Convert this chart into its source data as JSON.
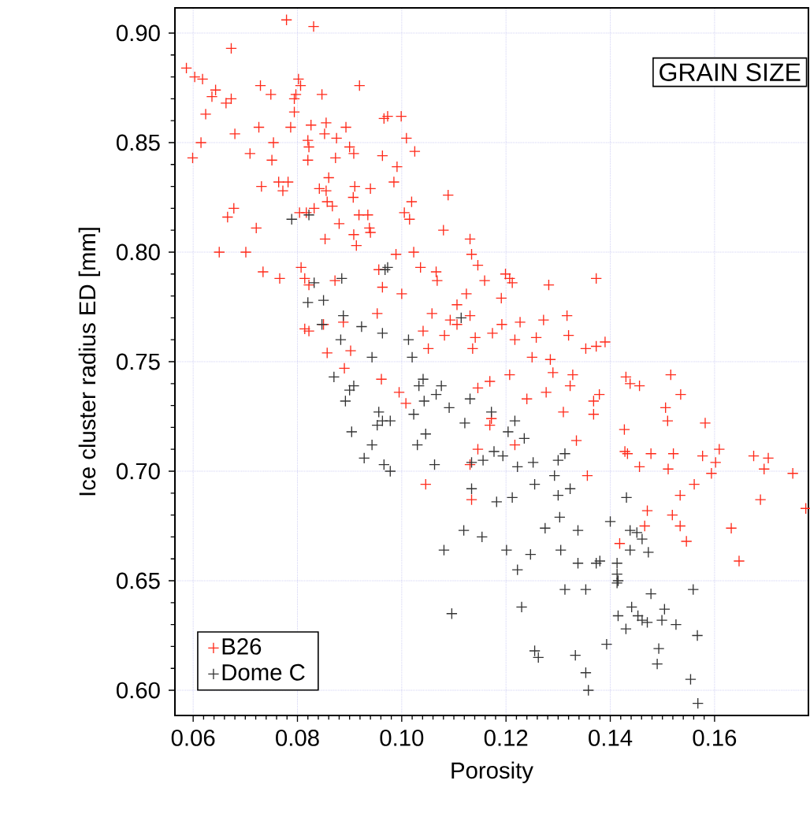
{
  "chart_data": {
    "type": "scatter",
    "xlabel": "Porosity",
    "ylabel": "Ice cluster radius ED [mm]",
    "annotations": [
      "GRAIN SIZE"
    ],
    "xlim": [
      0.0565,
      0.178
    ],
    "ylim": [
      0.5885,
      0.9115
    ],
    "xticks": [
      {
        "value": 0.06,
        "label": "0.06"
      },
      {
        "value": 0.08,
        "label": "0.08"
      },
      {
        "value": 0.1,
        "label": "0.10"
      },
      {
        "value": 0.12,
        "label": "0.12"
      },
      {
        "value": 0.14,
        "label": "0.14"
      },
      {
        "value": 0.16,
        "label": "0.16"
      }
    ],
    "yticks": [
      {
        "value": 0.6,
        "label": "0.60"
      },
      {
        "value": 0.65,
        "label": "0.65"
      },
      {
        "value": 0.7,
        "label": "0.70"
      },
      {
        "value": 0.75,
        "label": "0.75"
      },
      {
        "value": 0.8,
        "label": "0.80"
      },
      {
        "value": 0.85,
        "label": "0.85"
      },
      {
        "value": 0.9,
        "label": "0.90"
      }
    ],
    "grid": true,
    "legend": "bottom left",
    "marker": "cross",
    "series": [
      {
        "name": "B26",
        "color": "#ff2a1a",
        "x": [
          0.0779,
          0.0831,
          0.0673,
          0.0587,
          0.0603,
          0.0618,
          0.0643,
          0.0636,
          0.0663,
          0.0673,
          0.0624,
          0.0729,
          0.0749,
          0.0802,
          0.0806,
          0.0797,
          0.0794,
          0.0794,
          0.0847,
          0.0919,
          0.0966,
          0.0787,
          0.0826,
          0.0855,
          0.0893,
          0.0852,
          0.0875,
          0.0726,
          0.068,
          0.0615,
          0.0599,
          0.0709,
          0.0754,
          0.0751,
          0.082,
          0.0822,
          0.082,
          0.0873,
          0.09,
          0.0908,
          0.0963,
          0.0731,
          0.0764,
          0.0782,
          0.0772,
          0.086,
          0.0842,
          0.0855,
          0.0857,
          0.0867,
          0.091,
          0.0907,
          0.094,
          0.0678,
          0.0666,
          0.0721,
          0.0804,
          0.0817,
          0.0832,
          0.088,
          0.0918,
          0.0935,
          0.0938,
          0.094,
          0.0908,
          0.0913,
          0.0853,
          0.065,
          0.0701,
          0.0734,
          0.0766,
          0.0807,
          0.0814,
          0.0822,
          0.0872,
          0.0956,
          0.0963,
          0.0953,
          0.0814,
          0.0822,
          0.085,
          0.0888,
          0.0857,
          0.0902,
          0.0999,
          0.0973,
          0.1009,
          0.1025,
          0.0991,
          0.0985,
          0.1089,
          0.1019,
          0.1005,
          0.1015,
          0.108,
          0.1131,
          0.1134,
          0.1146,
          0.0989,
          0.1023,
          0.1036,
          0.1066,
          0.1068,
          0.1159,
          0.1199,
          0.1207,
          0.1212,
          0.1282,
          0.1373,
          0.1,
          0.1124,
          0.1191,
          0.1106,
          0.1058,
          0.1131,
          0.1093,
          0.1106,
          0.1192,
          0.1272,
          0.1317,
          0.1227,
          0.1041,
          0.1082,
          0.1141,
          0.1174,
          0.1217,
          0.1258,
          0.132,
          0.1051,
          0.1136,
          0.125,
          0.1285,
          0.1353,
          0.1373,
          0.139,
          0.089,
          0.0961,
          0.1207,
          0.1169,
          0.1146,
          0.129,
          0.1328,
          0.1323,
          0.1277,
          0.124,
          0.1008,
          0.0995,
          0.131,
          0.1368,
          0.1368,
          0.1172,
          0.1169,
          0.1217,
          0.1146,
          0.1131,
          0.1335,
          0.1356,
          0.1046,
          0.1134,
          0.143,
          0.1438,
          0.1456,
          0.1516,
          0.1535,
          0.1379,
          0.1506,
          0.151,
          0.1582,
          0.1427,
          0.1428,
          0.1433,
          0.1478,
          0.1521,
          0.1577,
          0.1609,
          0.1602,
          0.1675,
          0.1703,
          0.1695,
          0.175,
          0.1456,
          0.1511,
          0.1594,
          0.1561,
          0.1534,
          0.1688,
          0.1775,
          0.1471,
          0.1519,
          0.1466,
          0.1534,
          0.1632,
          0.1546,
          0.1418,
          0.1647
        ],
        "values": [
          0.906,
          0.903,
          0.893,
          0.884,
          0.88,
          0.879,
          0.874,
          0.871,
          0.868,
          0.87,
          0.863,
          0.876,
          0.872,
          0.879,
          0.876,
          0.872,
          0.87,
          0.864,
          0.872,
          0.876,
          0.861,
          0.857,
          0.858,
          0.859,
          0.857,
          0.854,
          0.852,
          0.857,
          0.854,
          0.85,
          0.843,
          0.845,
          0.85,
          0.842,
          0.851,
          0.848,
          0.842,
          0.843,
          0.848,
          0.845,
          0.844,
          0.83,
          0.832,
          0.832,
          0.828,
          0.834,
          0.829,
          0.828,
          0.823,
          0.821,
          0.83,
          0.825,
          0.829,
          0.82,
          0.816,
          0.811,
          0.818,
          0.818,
          0.82,
          0.813,
          0.817,
          0.817,
          0.811,
          0.809,
          0.808,
          0.803,
          0.806,
          0.8,
          0.8,
          0.791,
          0.788,
          0.793,
          0.788,
          0.785,
          0.787,
          0.792,
          0.784,
          0.772,
          0.765,
          0.764,
          0.767,
          0.768,
          0.754,
          0.755,
          0.862,
          0.862,
          0.852,
          0.846,
          0.839,
          0.832,
          0.826,
          0.823,
          0.818,
          0.815,
          0.81,
          0.806,
          0.799,
          0.794,
          0.799,
          0.8,
          0.793,
          0.791,
          0.787,
          0.787,
          0.79,
          0.788,
          0.786,
          0.785,
          0.788,
          0.781,
          0.781,
          0.779,
          0.776,
          0.772,
          0.771,
          0.769,
          0.767,
          0.767,
          0.769,
          0.771,
          0.768,
          0.764,
          0.762,
          0.761,
          0.763,
          0.76,
          0.761,
          0.762,
          0.756,
          0.756,
          0.752,
          0.751,
          0.756,
          0.757,
          0.759,
          0.747,
          0.742,
          0.744,
          0.741,
          0.738,
          0.745,
          0.744,
          0.739,
          0.736,
          0.733,
          0.731,
          0.736,
          0.727,
          0.732,
          0.726,
          0.724,
          0.721,
          0.712,
          0.71,
          0.703,
          0.714,
          0.698,
          0.694,
          0.687,
          0.743,
          0.74,
          0.739,
          0.744,
          0.735,
          0.735,
          0.729,
          0.723,
          0.722,
          0.719,
          0.709,
          0.708,
          0.708,
          0.708,
          0.707,
          0.71,
          0.704,
          0.707,
          0.706,
          0.701,
          0.699,
          0.702,
          0.701,
          0.699,
          0.694,
          0.689,
          0.687,
          0.683,
          0.682,
          0.68,
          0.675,
          0.675,
          0.674,
          0.668,
          0.667,
          0.659
        ]
      },
      {
        "name": "Dome C",
        "color": "#333333",
        "x": [
          0.0789,
          0.0822,
          0.0885,
          0.0832,
          0.082,
          0.085,
          0.0847,
          0.0888,
          0.0883,
          0.0923,
          0.0963,
          0.0968,
          0.0943,
          0.0973,
          0.1114,
          0.1013,
          0.102,
          0.087,
          0.09,
          0.0908,
          0.0892,
          0.0956,
          0.0953,
          0.0963,
          0.0904,
          0.0943,
          0.0928,
          0.0966,
          0.1041,
          0.1033,
          0.1076,
          0.1066,
          0.1043,
          0.1091,
          0.1131,
          0.1023,
          0.0978,
          0.1121,
          0.1172,
          0.1217,
          0.1204,
          0.1235,
          0.1046,
          0.103,
          0.1177,
          0.1194,
          0.1134,
          0.1156,
          0.1063,
          0.0978,
          0.1222,
          0.1252,
          0.13,
          0.1313,
          0.1293,
          0.1255,
          0.1323,
          0.13,
          0.1134,
          0.1182,
          0.1212,
          0.1303,
          0.1275,
          0.1338,
          0.1119,
          0.1154,
          0.1081,
          0.1201,
          0.1247,
          0.1305,
          0.1222,
          0.1338,
          0.1373,
          0.1313,
          0.1353,
          0.123,
          0.1096,
          0.1255,
          0.1262,
          0.1333,
          0.1353,
          0.1358,
          0.1431,
          0.14,
          0.1438,
          0.1451,
          0.1461,
          0.1438,
          0.1473,
          0.138,
          0.1413,
          0.1413,
          0.1415,
          0.1413,
          0.1559,
          0.1478,
          0.1441,
          0.1504,
          0.1415,
          0.1453,
          0.1461,
          0.1471,
          0.1499,
          0.143,
          0.1526,
          0.1567,
          0.1393,
          0.1493,
          0.149,
          0.1554,
          0.1568
        ],
        "values": [
          0.815,
          0.817,
          0.788,
          0.786,
          0.777,
          0.778,
          0.767,
          0.771,
          0.76,
          0.766,
          0.763,
          0.792,
          0.752,
          0.793,
          0.77,
          0.76,
          0.752,
          0.743,
          0.737,
          0.739,
          0.732,
          0.727,
          0.721,
          0.723,
          0.718,
          0.712,
          0.706,
          0.703,
          0.742,
          0.739,
          0.739,
          0.735,
          0.732,
          0.729,
          0.733,
          0.726,
          0.723,
          0.722,
          0.727,
          0.723,
          0.718,
          0.715,
          0.717,
          0.712,
          0.709,
          0.707,
          0.704,
          0.705,
          0.703,
          0.7,
          0.702,
          0.704,
          0.705,
          0.708,
          0.698,
          0.694,
          0.692,
          0.689,
          0.692,
          0.686,
          0.688,
          0.679,
          0.674,
          0.673,
          0.673,
          0.67,
          0.664,
          0.664,
          0.662,
          0.664,
          0.655,
          0.658,
          0.658,
          0.646,
          0.646,
          0.638,
          0.635,
          0.618,
          0.615,
          0.616,
          0.608,
          0.6,
          0.688,
          0.677,
          0.673,
          0.672,
          0.669,
          0.664,
          0.663,
          0.659,
          0.658,
          0.653,
          0.65,
          0.649,
          0.646,
          0.644,
          0.638,
          0.637,
          0.634,
          0.634,
          0.632,
          0.631,
          0.632,
          0.628,
          0.63,
          0.625,
          0.621,
          0.619,
          0.612,
          0.605,
          0.594
        ]
      }
    ]
  }
}
